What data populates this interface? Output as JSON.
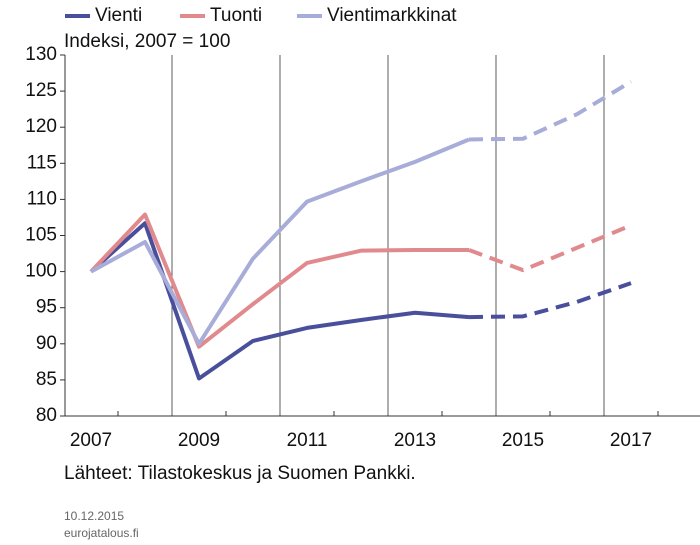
{
  "chart_data": {
    "type": "line",
    "subtitle": "Indeksi, 2007 = 100",
    "categories": [
      "2007",
      null,
      "2009",
      null,
      "2011",
      null,
      "2013",
      null,
      "2015",
      null,
      "2017"
    ],
    "series": [
      {
        "name": "Vienti",
        "color": "#4a4f9c",
        "values": [
          100,
          106.7,
          85.2,
          90.4,
          92.2,
          93.3,
          94.3,
          93.7,
          93.8,
          95.8,
          98.4
        ]
      },
      {
        "name": "Tuonti",
        "color": "#e08a8e",
        "values": [
          100,
          107.9,
          89.6,
          95.5,
          101.2,
          102.9,
          103.0,
          103.0,
          100.2,
          103.3,
          106.4
        ]
      },
      {
        "name": "Vientimarkkinat",
        "color": "#a8acd8",
        "values": [
          100,
          104.1,
          90.0,
          101.8,
          109.7,
          112.5,
          115.2,
          118.3,
          118.4,
          121.8,
          126.3
        ]
      }
    ],
    "dashed_from": 7,
    "ylim": [
      80,
      130
    ],
    "yticks": [
      80,
      85,
      90,
      95,
      100,
      105,
      110,
      115,
      120,
      125,
      130
    ],
    "grid": "x",
    "legend": "top",
    "note": "Lähteet: Tilastokeskus ja Suomen Pankki.",
    "date": "10.12.2015",
    "site": "eurojatalous.fi"
  }
}
